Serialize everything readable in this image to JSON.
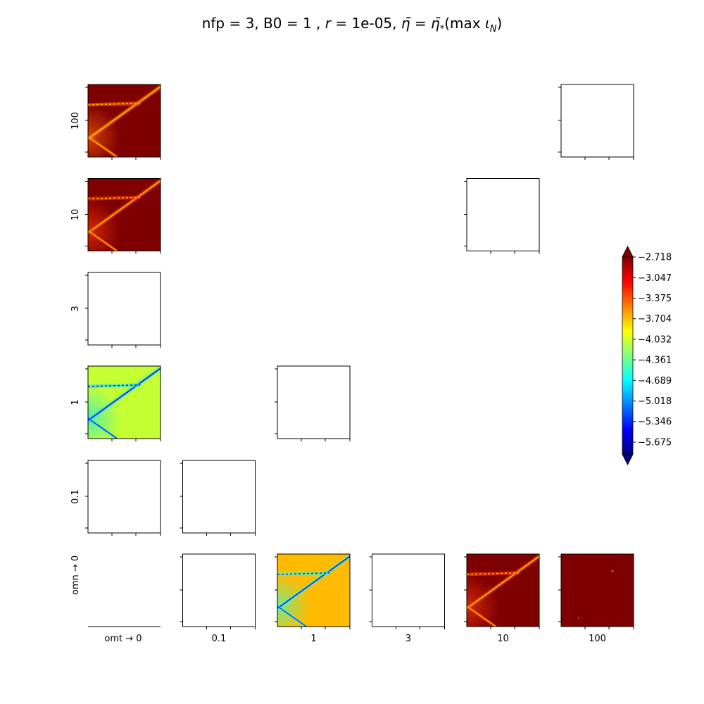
{
  "chart_data": {
    "type": "heatmap",
    "title": "nfp = 3, B0 = 1 , r = 1e-05, η̄ = η̄*(max ι_N)",
    "title_parts": {
      "prefix": "nfp = 3, B0 = 1 , ",
      "r_symbol": "r",
      "r_value": " = 1e-05, ",
      "eta": "η̄",
      "eq": " = ",
      "eta_star": "η̄",
      "star": "*",
      "func": "(max ",
      "iota": "ι",
      "iota_sub": "N",
      "close": ")"
    },
    "xlabel_prefix": "omt →",
    "ylabel_prefix": "omn →",
    "omt_values": [
      "0",
      "0.1",
      "1",
      "3",
      "10",
      "100"
    ],
    "omn_values": [
      "100",
      "10",
      "3",
      "1",
      "0.1",
      "0"
    ],
    "panels": [
      {
        "omn": "100",
        "omt": "0",
        "fill": "heatmap",
        "base_color": "#7f0000",
        "line_color": "#ffcc00",
        "feature_color": "#ff6600"
      },
      {
        "omn": "100",
        "omt": "100",
        "fill": "empty"
      },
      {
        "omn": "10",
        "omt": "0",
        "fill": "heatmap",
        "base_color": "#7f0000",
        "line_color": "#ffd200",
        "feature_color": "#ff3c00"
      },
      {
        "omn": "10",
        "omt": "10",
        "fill": "empty"
      },
      {
        "omn": "3",
        "omt": "0",
        "fill": "empty"
      },
      {
        "omn": "1",
        "omt": "0",
        "fill": "heatmap",
        "base_color": "#c4ff33",
        "line_color": "#0010ff",
        "feature_color": "#22e0e8"
      },
      {
        "omn": "1",
        "omt": "1",
        "fill": "empty"
      },
      {
        "omn": "0.1",
        "omt": "0",
        "fill": "empty"
      },
      {
        "omn": "0.1",
        "omt": "0.1",
        "fill": "empty"
      },
      {
        "omn": "0",
        "omt": "0",
        "fill": "blank"
      },
      {
        "omn": "0",
        "omt": "0.1",
        "fill": "empty"
      },
      {
        "omn": "0",
        "omt": "1",
        "fill": "heatmap",
        "base_color": "#ffbb00",
        "line_color": "#0020ff",
        "feature_color": "#33ffcc"
      },
      {
        "omn": "0",
        "omt": "3",
        "fill": "empty"
      },
      {
        "omn": "0",
        "omt": "10",
        "fill": "heatmap",
        "base_color": "#7f0000",
        "line_color": "#ffd200",
        "feature_color": "#ff3c00"
      },
      {
        "omn": "0",
        "omt": "100",
        "fill": "heatmap-faint",
        "base_color": "#7f0000",
        "line_color": "#ff6600",
        "feature_color": "#ff6600"
      }
    ],
    "colorbar": {
      "colormap": "jet",
      "range": [
        -5.675,
        -2.718
      ],
      "extend": "both",
      "ticks": [
        "−2.718",
        "−3.047",
        "−3.375",
        "−3.704",
        "−4.032",
        "−4.361",
        "−4.689",
        "−5.018",
        "−5.346",
        "−5.675"
      ],
      "tick_values": [
        -2.718,
        -3.047,
        -3.375,
        -3.704,
        -4.032,
        -4.361,
        -4.689,
        -5.018,
        -5.346,
        -5.675
      ],
      "stops": [
        "#00007f",
        "#0000ff",
        "#007fff",
        "#00ffff",
        "#7fff7f",
        "#ffff00",
        "#ff7f00",
        "#ff0000",
        "#7f0000"
      ]
    }
  }
}
